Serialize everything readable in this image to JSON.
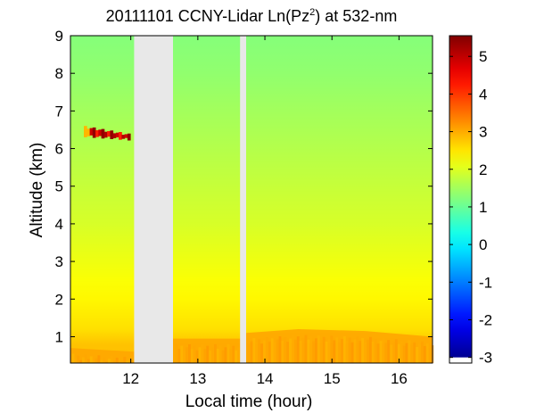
{
  "chart_data": {
    "type": "heatmap",
    "title_main": "20111101 CCNY-Lidar Ln(Pz",
    "title_sup": "2",
    "title_tail": ") at 532-nm",
    "xlabel": "Local time (hour)",
    "ylabel": "Altitude (km)",
    "xlim": [
      11.1,
      16.5
    ],
    "ylim": [
      0.3,
      9
    ],
    "x_ticks": [
      "12",
      "13",
      "14",
      "15",
      "16"
    ],
    "x_tick_values": [
      12,
      13,
      14,
      15,
      16
    ],
    "y_ticks": [
      "1",
      "2",
      "3",
      "4",
      "5",
      "6",
      "7",
      "8",
      "9"
    ],
    "y_tick_values": [
      1,
      2,
      3,
      4,
      5,
      6,
      7,
      8,
      9
    ],
    "colorbar": {
      "range": [
        -3.15,
        5.55
      ],
      "ticks": [
        "-3",
        "-2",
        "-1",
        "0",
        "1",
        "2",
        "3",
        "4",
        "5"
      ],
      "tick_values": [
        -3,
        -2,
        -1,
        0,
        1,
        2,
        3,
        4,
        5
      ],
      "colormap": "jet"
    },
    "data_gaps": [
      [
        12.05,
        12.63
      ],
      [
        13.63,
        13.72
      ]
    ],
    "gap_color": "#e8e8e8",
    "background_profile": {
      "altitude_km": [
        0.3,
        0.8,
        1.2,
        1.6,
        2.0,
        2.5,
        3.0,
        3.5,
        4.0,
        5.0,
        6.0,
        7.0,
        8.0,
        9.0
      ],
      "ln_pz2": [
        2.85,
        2.8,
        2.55,
        2.45,
        2.35,
        2.25,
        2.15,
        2.05,
        1.95,
        1.8,
        1.65,
        1.5,
        1.35,
        1.25
      ]
    },
    "boundary_layer_top_km": [
      {
        "t": 11.1,
        "z": 0.7
      },
      {
        "t": 12.05,
        "z": 0.6
      },
      {
        "t": 12.63,
        "z": 0.95
      },
      {
        "t": 13.63,
        "z": 0.95
      },
      {
        "t": 13.72,
        "z": 1.1
      },
      {
        "t": 14.5,
        "z": 1.2
      },
      {
        "t": 15.5,
        "z": 1.15
      },
      {
        "t": 16.5,
        "z": 1.0
      }
    ],
    "boundary_layer_value": 3.05,
    "cloud_layer": {
      "altitude_km": [
        6.25,
        6.65
      ],
      "time_range": [
        11.3,
        11.95
      ],
      "peak_value": 5.4
    }
  }
}
